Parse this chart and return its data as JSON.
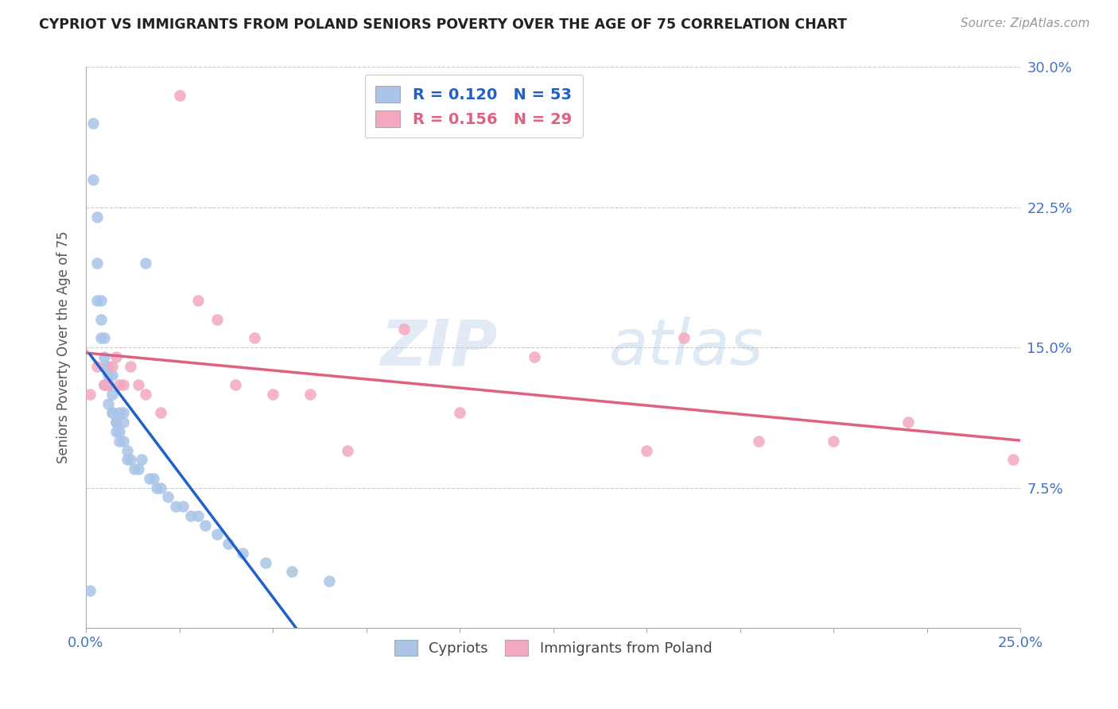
{
  "title": "CYPRIOT VS IMMIGRANTS FROM POLAND SENIORS POVERTY OVER THE AGE OF 75 CORRELATION CHART",
  "source": "Source: ZipAtlas.com",
  "ylabel": "Seniors Poverty Over the Age of 75",
  "xlim": [
    0.0,
    0.25
  ],
  "ylim": [
    0.0,
    0.3
  ],
  "xticks": [
    0.0,
    0.025,
    0.05,
    0.075,
    0.1,
    0.125,
    0.15,
    0.175,
    0.2,
    0.225,
    0.25
  ],
  "yticks": [
    0.0,
    0.075,
    0.15,
    0.225,
    0.3
  ],
  "cypriot_R": 0.12,
  "cypriot_N": 53,
  "poland_R": 0.156,
  "poland_N": 29,
  "cypriot_color": "#aac4e8",
  "cypriot_line_color": "#2060c8",
  "poland_color": "#f4a8c0",
  "poland_line_color": "#e06080",
  "cypriot_x": [
    0.001,
    0.002,
    0.002,
    0.003,
    0.003,
    0.003,
    0.004,
    0.004,
    0.004,
    0.005,
    0.005,
    0.005,
    0.005,
    0.006,
    0.006,
    0.006,
    0.006,
    0.007,
    0.007,
    0.007,
    0.007,
    0.008,
    0.008,
    0.008,
    0.009,
    0.009,
    0.009,
    0.01,
    0.01,
    0.01,
    0.011,
    0.011,
    0.012,
    0.013,
    0.014,
    0.015,
    0.016,
    0.017,
    0.018,
    0.019,
    0.02,
    0.022,
    0.024,
    0.026,
    0.028,
    0.03,
    0.032,
    0.035,
    0.038,
    0.042,
    0.048,
    0.055,
    0.065
  ],
  "cypriot_y": [
    0.02,
    0.27,
    0.24,
    0.22,
    0.195,
    0.175,
    0.175,
    0.165,
    0.155,
    0.155,
    0.145,
    0.14,
    0.13,
    0.14,
    0.135,
    0.13,
    0.12,
    0.135,
    0.125,
    0.115,
    0.115,
    0.11,
    0.11,
    0.105,
    0.115,
    0.105,
    0.1,
    0.115,
    0.11,
    0.1,
    0.095,
    0.09,
    0.09,
    0.085,
    0.085,
    0.09,
    0.195,
    0.08,
    0.08,
    0.075,
    0.075,
    0.07,
    0.065,
    0.065,
    0.06,
    0.06,
    0.055,
    0.05,
    0.045,
    0.04,
    0.035,
    0.03,
    0.025
  ],
  "poland_x": [
    0.001,
    0.003,
    0.005,
    0.006,
    0.007,
    0.008,
    0.009,
    0.01,
    0.012,
    0.014,
    0.016,
    0.02,
    0.025,
    0.03,
    0.035,
    0.04,
    0.045,
    0.05,
    0.06,
    0.07,
    0.085,
    0.1,
    0.12,
    0.15,
    0.16,
    0.18,
    0.2,
    0.22,
    0.248
  ],
  "poland_y": [
    0.125,
    0.14,
    0.13,
    0.13,
    0.14,
    0.145,
    0.13,
    0.13,
    0.14,
    0.13,
    0.125,
    0.115,
    0.285,
    0.175,
    0.165,
    0.13,
    0.155,
    0.125,
    0.125,
    0.095,
    0.16,
    0.115,
    0.145,
    0.095,
    0.155,
    0.1,
    0.1,
    0.11,
    0.09
  ],
  "cyp_line_x0": 0.001,
  "cyp_line_x1": 0.07,
  "pol_line_x0": 0.0,
  "pol_line_x1": 0.25,
  "dash_line_x0": 0.0,
  "dash_line_x1": 0.25,
  "watermark_zip": "ZIP",
  "watermark_atlas": "atlas",
  "background_color": "#ffffff",
  "grid_color": "#cccccc"
}
